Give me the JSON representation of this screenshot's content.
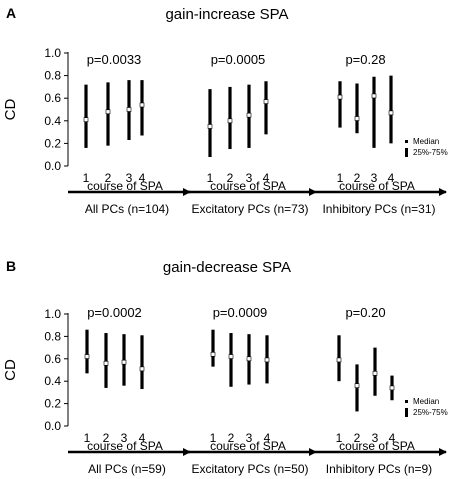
{
  "chart_data": [
    {
      "type": "range",
      "panel_letter": "A",
      "title": "gain-increase SPA",
      "ylabel": "CD",
      "ylim": [
        0.0,
        1.0
      ],
      "yticks": [
        "0.0",
        "0.2",
        "0.4",
        "0.6",
        "0.8",
        "1.0"
      ],
      "ytick_values": [
        0.0,
        0.2,
        0.4,
        0.6,
        0.8,
        1.0
      ],
      "legend": {
        "median_label": "Median",
        "range_label": "25%-75%",
        "placement": "right"
      },
      "groups": [
        {
          "label": "All PCs (n=104)",
          "axis_label": "course of SPA",
          "pvalue": "p=0.0033",
          "x": [
            "1",
            "2",
            "3",
            "4"
          ],
          "median": [
            0.41,
            0.48,
            0.5,
            0.54
          ],
          "q25": [
            0.16,
            0.18,
            0.23,
            0.27
          ],
          "q75": [
            0.72,
            0.74,
            0.76,
            0.76
          ]
        },
        {
          "label": "Excitatory PCs (n=73)",
          "axis_label": "course of SPA",
          "pvalue": "p=0.0005",
          "x": [
            "1",
            "2",
            "3",
            "4"
          ],
          "median": [
            0.35,
            0.4,
            0.45,
            0.57
          ],
          "q25": [
            0.08,
            0.15,
            0.16,
            0.28
          ],
          "q75": [
            0.68,
            0.7,
            0.72,
            0.75
          ]
        },
        {
          "label": "Inhibitory PCs (n=31)",
          "axis_label": "course of SPA",
          "pvalue": "p=0.28",
          "x": [
            "1",
            "2",
            "3",
            "4"
          ],
          "median": [
            0.61,
            0.42,
            0.62,
            0.47
          ],
          "q25": [
            0.34,
            0.29,
            0.16,
            0.2
          ],
          "q75": [
            0.75,
            0.73,
            0.79,
            0.8
          ]
        }
      ]
    },
    {
      "type": "range",
      "panel_letter": "B",
      "title": "gain-decrease SPA",
      "ylabel": "CD",
      "ylim": [
        0.0,
        1.0
      ],
      "yticks": [
        "0.0",
        "0.2",
        "0.4",
        "0.6",
        "0.8",
        "1.0"
      ],
      "ytick_values": [
        0.0,
        0.2,
        0.4,
        0.6,
        0.8,
        1.0
      ],
      "legend": {
        "median_label": "Median",
        "range_label": "25%-75%",
        "placement": "right"
      },
      "groups": [
        {
          "label": "All PCs (n=59)",
          "axis_label": "course of SPA",
          "pvalue": "p=0.0002",
          "x": [
            "1",
            "2",
            "3",
            "4"
          ],
          "median": [
            0.62,
            0.56,
            0.57,
            0.51
          ],
          "q25": [
            0.47,
            0.34,
            0.36,
            0.33
          ],
          "q75": [
            0.86,
            0.83,
            0.82,
            0.81
          ]
        },
        {
          "label": "Excitatory PCs (n=50)",
          "axis_label": "course of SPA",
          "pvalue": "p=0.0009",
          "x": [
            "1",
            "2",
            "3",
            "4"
          ],
          "median": [
            0.64,
            0.62,
            0.6,
            0.59
          ],
          "q25": [
            0.53,
            0.35,
            0.37,
            0.38
          ],
          "q75": [
            0.86,
            0.83,
            0.82,
            0.81
          ]
        },
        {
          "label": "Inhibitory PCs (n=9)",
          "axis_label": "course of SPA",
          "pvalue": "p=0.20",
          "x": [
            "1",
            "2",
            "3",
            "4"
          ],
          "median": [
            0.59,
            0.36,
            0.47,
            0.34
          ],
          "q25": [
            0.4,
            0.13,
            0.27,
            0.23
          ],
          "q75": [
            0.81,
            0.55,
            0.7,
            0.45
          ]
        }
      ]
    }
  ]
}
